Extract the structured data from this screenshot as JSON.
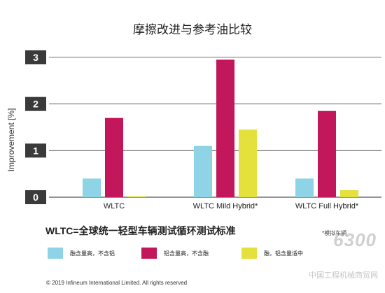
{
  "title": "摩擦改进与参考油比较",
  "chart_data": {
    "type": "bar",
    "categories": [
      "WLTC",
      "WLTC Mild Hybrid*",
      "WLTC Full Hybrid*"
    ],
    "series": [
      {
        "name": "融含量高，不含铝",
        "color": "#8fd3e6",
        "values": [
          0.4,
          1.1,
          0.4
        ]
      },
      {
        "name": "铝含量高，不含融",
        "color": "#c2185b",
        "values": [
          1.7,
          2.95,
          1.85
        ]
      },
      {
        "name": "融，铝含量适中",
        "color": "#e4e03c",
        "values": [
          0.02,
          1.45,
          0.15
        ]
      }
    ],
    "ylabel": "Improvement [%]",
    "ylim": [
      0,
      3
    ],
    "yticks": [
      "0",
      "1",
      "2",
      "3"
    ],
    "grid": true
  },
  "note": "WLTC=全球统一轻型车辆测试循环测试标准",
  "footnote": "*模拟车辆",
  "copyright": "© 2019 Infineum International Limited. All rights reserved",
  "watermark": "6300",
  "watermark_sub": "中国工程机械商贸网"
}
